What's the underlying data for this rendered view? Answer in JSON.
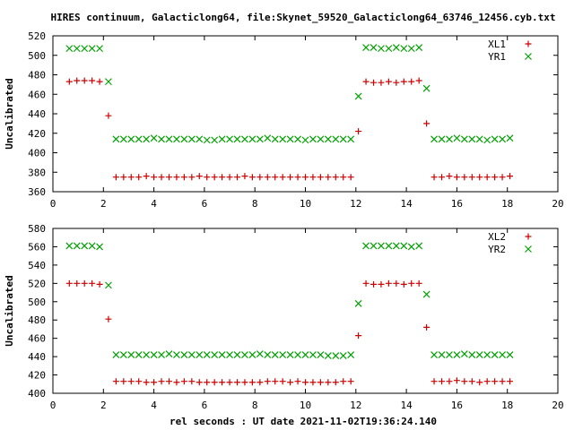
{
  "title": "HIRES continuum, Galacticlong64, file:Skynet_59520_Galacticlong64_63746_12456.cyb.txt",
  "xlabel": "rel seconds : UT date 2021-11-02T19:36:24.140",
  "colors": {
    "red": "#cc0000",
    "green": "#00a000",
    "axis": "#000000"
  },
  "chart_data": [
    {
      "type": "scatter",
      "title": "HIRES continuum, Galacticlong64, file:Skynet_59520_Galacticlong64_63746_12456.cyb.txt",
      "xlabel": "",
      "ylabel": "Uncalibrated",
      "xlim": [
        0,
        20
      ],
      "ylim": [
        360,
        520
      ],
      "xticks": [
        0,
        2,
        4,
        6,
        8,
        10,
        12,
        14,
        16,
        18,
        20
      ],
      "yticks": [
        360,
        380,
        400,
        420,
        440,
        460,
        480,
        500,
        520
      ],
      "legend_position": "top-right",
      "grid": false,
      "series": [
        {
          "name": "XL1",
          "marker": "+",
          "color": "#cc0000",
          "x": [
            0.65,
            0.95,
            1.25,
            1.55,
            1.85,
            2.2,
            2.5,
            2.8,
            3.1,
            3.4,
            3.7,
            4.0,
            4.3,
            4.6,
            4.9,
            5.2,
            5.5,
            5.8,
            6.1,
            6.4,
            6.7,
            7.0,
            7.3,
            7.6,
            7.9,
            8.2,
            8.5,
            8.8,
            9.1,
            9.4,
            9.7,
            10.0,
            10.3,
            10.6,
            10.9,
            11.2,
            11.5,
            11.8,
            12.1,
            12.4,
            12.7,
            13.0,
            13.3,
            13.6,
            13.9,
            14.2,
            14.5,
            14.8,
            15.1,
            15.4,
            15.7,
            16.0,
            16.3,
            16.6,
            16.9,
            17.2,
            17.5,
            17.8,
            18.1
          ],
          "y": [
            473,
            474,
            474,
            474,
            473,
            438,
            375,
            375,
            375,
            375,
            376,
            375,
            375,
            375,
            375,
            375,
            375,
            376,
            375,
            375,
            375,
            375,
            375,
            376,
            375,
            375,
            375,
            375,
            375,
            375,
            375,
            375,
            375,
            375,
            375,
            375,
            375,
            375,
            422,
            473,
            472,
            472,
            473,
            472,
            473,
            473,
            474,
            430,
            375,
            375,
            376,
            375,
            375,
            375,
            375,
            375,
            375,
            375,
            376
          ]
        },
        {
          "name": "YR1",
          "marker": "x",
          "color": "#00a000",
          "x": [
            0.65,
            0.95,
            1.25,
            1.55,
            1.85,
            2.2,
            2.5,
            2.8,
            3.1,
            3.4,
            3.7,
            4.0,
            4.3,
            4.6,
            4.9,
            5.2,
            5.5,
            5.8,
            6.1,
            6.4,
            6.7,
            7.0,
            7.3,
            7.6,
            7.9,
            8.2,
            8.5,
            8.8,
            9.1,
            9.4,
            9.7,
            10.0,
            10.3,
            10.6,
            10.9,
            11.2,
            11.5,
            11.8,
            12.1,
            12.4,
            12.7,
            13.0,
            13.3,
            13.6,
            13.9,
            14.2,
            14.5,
            14.8,
            15.1,
            15.4,
            15.7,
            16.0,
            16.3,
            16.6,
            16.9,
            17.2,
            17.5,
            17.8,
            18.1
          ],
          "y": [
            507,
            507,
            507,
            507,
            507,
            473,
            414,
            414,
            414,
            414,
            414,
            415,
            414,
            414,
            414,
            414,
            414,
            414,
            413,
            413,
            414,
            414,
            414,
            414,
            414,
            414,
            415,
            414,
            414,
            414,
            414,
            413,
            414,
            414,
            414,
            414,
            414,
            414,
            458,
            508,
            508,
            507,
            507,
            508,
            507,
            507,
            508,
            466,
            414,
            414,
            414,
            415,
            414,
            414,
            414,
            413,
            414,
            414,
            415
          ]
        }
      ]
    },
    {
      "type": "scatter",
      "xlabel": "rel seconds : UT date 2021-11-02T19:36:24.140",
      "ylabel": "Uncalibrated",
      "xlim": [
        0,
        20
      ],
      "ylim": [
        400,
        580
      ],
      "xticks": [
        0,
        2,
        4,
        6,
        8,
        10,
        12,
        14,
        16,
        18,
        20
      ],
      "yticks": [
        400,
        420,
        440,
        460,
        480,
        500,
        520,
        540,
        560,
        580
      ],
      "legend_position": "top-right",
      "grid": false,
      "series": [
        {
          "name": "XL2",
          "marker": "+",
          "color": "#cc0000",
          "x": [
            0.65,
            0.95,
            1.25,
            1.55,
            1.85,
            2.2,
            2.5,
            2.8,
            3.1,
            3.4,
            3.7,
            4.0,
            4.3,
            4.6,
            4.9,
            5.2,
            5.5,
            5.8,
            6.1,
            6.4,
            6.7,
            7.0,
            7.3,
            7.6,
            7.9,
            8.2,
            8.5,
            8.8,
            9.1,
            9.4,
            9.7,
            10.0,
            10.3,
            10.6,
            10.9,
            11.2,
            11.5,
            11.8,
            12.1,
            12.4,
            12.7,
            13.0,
            13.3,
            13.6,
            13.9,
            14.2,
            14.5,
            14.8,
            15.1,
            15.4,
            15.7,
            16.0,
            16.3,
            16.6,
            16.9,
            17.2,
            17.5,
            17.8,
            18.1
          ],
          "y": [
            520,
            520,
            520,
            520,
            519,
            481,
            413,
            413,
            413,
            413,
            412,
            412,
            413,
            413,
            412,
            413,
            413,
            412,
            412,
            412,
            412,
            412,
            412,
            412,
            412,
            412,
            413,
            413,
            413,
            412,
            413,
            412,
            412,
            412,
            412,
            412,
            413,
            413,
            463,
            520,
            519,
            519,
            520,
            520,
            519,
            520,
            520,
            472,
            413,
            413,
            413,
            414,
            413,
            413,
            412,
            413,
            413,
            413,
            413
          ]
        },
        {
          "name": "YR2",
          "marker": "x",
          "color": "#00a000",
          "x": [
            0.65,
            0.95,
            1.25,
            1.55,
            1.85,
            2.2,
            2.5,
            2.8,
            3.1,
            3.4,
            3.7,
            4.0,
            4.3,
            4.6,
            4.9,
            5.2,
            5.5,
            5.8,
            6.1,
            6.4,
            6.7,
            7.0,
            7.3,
            7.6,
            7.9,
            8.2,
            8.5,
            8.8,
            9.1,
            9.4,
            9.7,
            10.0,
            10.3,
            10.6,
            10.9,
            11.2,
            11.5,
            11.8,
            12.1,
            12.4,
            12.7,
            13.0,
            13.3,
            13.6,
            13.9,
            14.2,
            14.5,
            14.8,
            15.1,
            15.4,
            15.7,
            16.0,
            16.3,
            16.6,
            16.9,
            17.2,
            17.5,
            17.8,
            18.1
          ],
          "y": [
            561,
            561,
            561,
            561,
            560,
            518,
            442,
            442,
            442,
            442,
            442,
            442,
            442,
            443,
            442,
            442,
            442,
            442,
            442,
            442,
            442,
            442,
            442,
            442,
            442,
            443,
            442,
            442,
            442,
            442,
            442,
            442,
            442,
            442,
            441,
            441,
            441,
            442,
            498,
            561,
            561,
            561,
            561,
            561,
            561,
            560,
            561,
            508,
            442,
            442,
            442,
            442,
            443,
            442,
            442,
            442,
            442,
            442,
            442
          ]
        }
      ]
    }
  ]
}
